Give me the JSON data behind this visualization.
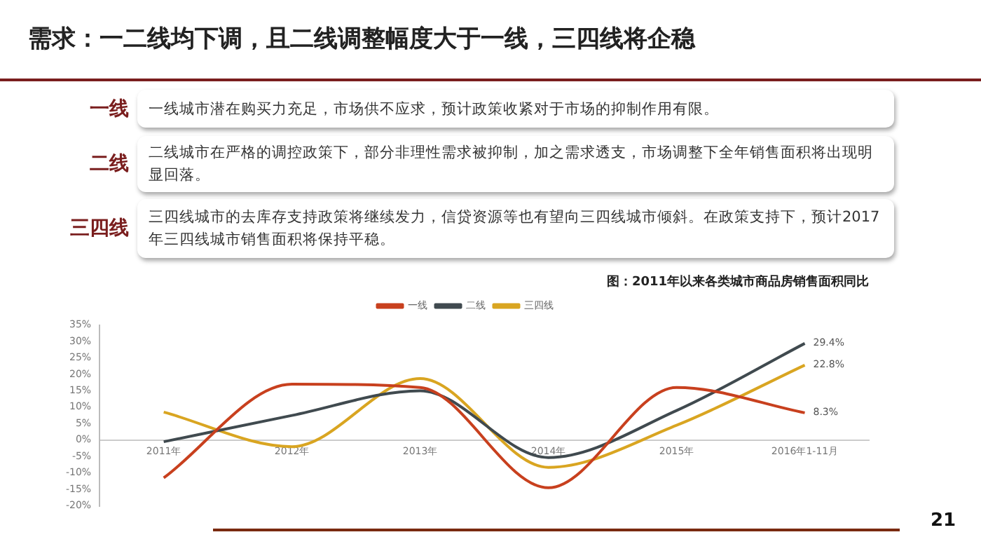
{
  "chart_data": {
    "type": "line",
    "title": "需求：一二线均下调，且二线调整幅度大于一线，三四线将企稳",
    "subtitle": "图：2011年以来各类城市商品房销售面积同比",
    "annotations": [
      "一线",
      "一线城市潜在购买力充足，市场供不应求，预计政策收紧对于市场的抑制作用有限。",
      "二线",
      "二线城市在严格的调控政策下，部分非理性需求被抑制，加之需求透支，市场调整下全年销售面积将出现明显回落。",
      "三四线",
      "三四线城市的去库存支持政策将继续发力，信贷资源等也有望向三四线城市倾斜。在政策支持下，预计2017年三四线城市销售面积将保持平稳。",
      "21"
    ],
    "categories": [
      "2011年",
      "2012年",
      "2013年",
      "2014年",
      "2015年",
      "2016年1-11月"
    ],
    "series": [
      {
        "name": "一线",
        "color": "#c8401e",
        "values": [
          -11.5,
          17,
          16,
          -14.5,
          16,
          8.3
        ],
        "value_labels": [
          null,
          null,
          null,
          null,
          null,
          "8.3%"
        ]
      },
      {
        "name": "二线",
        "color": "#404a4f",
        "values": [
          -0.5,
          7.5,
          15,
          -5.3,
          9,
          29.4
        ],
        "value_labels": [
          null,
          null,
          null,
          null,
          null,
          "29.4%"
        ]
      },
      {
        "name": "三四线",
        "color": "#d9a521",
        "values": [
          8.5,
          -2,
          18.7,
          -8.3,
          4.5,
          22.8
        ],
        "value_labels": [
          null,
          null,
          null,
          null,
          null,
          "22.8%"
        ]
      }
    ],
    "ylim": [
      -20,
      35
    ],
    "yticks": [
      {
        "value": -20,
        "label": "-20%"
      },
      {
        "value": -15,
        "label": "-15%"
      },
      {
        "value": -10,
        "label": "-10%"
      },
      {
        "value": -5,
        "label": "-5%"
      },
      {
        "value": 0,
        "label": "0%"
      },
      {
        "value": 5,
        "label": "5%"
      },
      {
        "value": 10,
        "label": "10%"
      },
      {
        "value": 15,
        "label": "15%"
      },
      {
        "value": 20,
        "label": "20%"
      },
      {
        "value": 25,
        "label": "25%"
      },
      {
        "value": 30,
        "label": "30%"
      },
      {
        "value": 35,
        "label": "35%"
      }
    ],
    "grid": false,
    "legend": "top",
    "marker": "none",
    "line_style": "solid"
  }
}
